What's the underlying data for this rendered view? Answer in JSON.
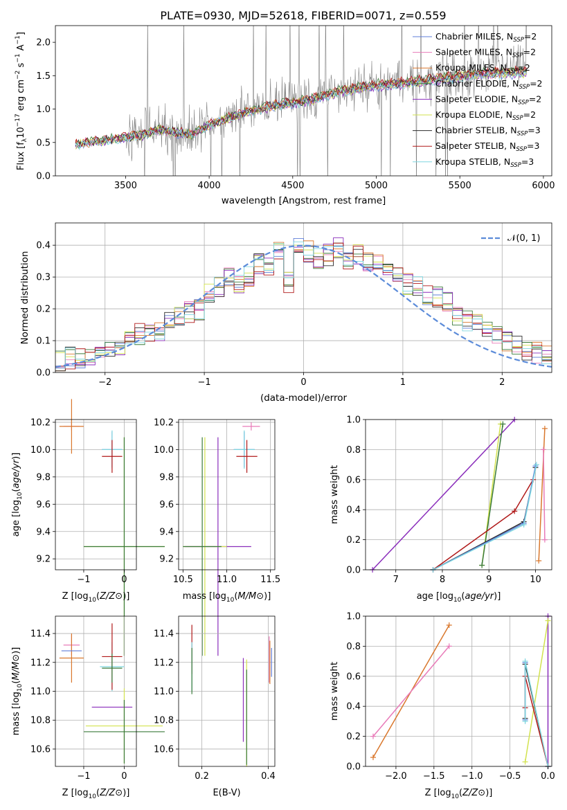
{
  "figure_title": "PLATE=0930, MJD=52618, FIBERID=0071, z=0.559",
  "chart_data": [
    {
      "id": "spectrum",
      "type": "line",
      "xlabel": "wavelength [Angstrom, rest frame]",
      "ylabel": "Flux [f_λ 10^-17 erg cm^-2 s^-1 A^-1]",
      "xlim": [
        3080,
        6050
      ],
      "ylim": [
        0,
        2.25
      ],
      "xticks": [
        3500,
        4000,
        4500,
        5000,
        5500,
        6000
      ],
      "yticks": [
        0.0,
        0.5,
        1.0,
        1.5,
        2.0
      ],
      "yticklabels": [
        "0.0",
        "0.5",
        "1.0",
        "1.5",
        "2.0"
      ],
      "grid": false,
      "legend_position": "top-right",
      "legend": [
        {
          "model": "Chabrier MILES, N",
          "sub": "SSP",
          "tail": "=2",
          "color": "#5f7ed8"
        },
        {
          "model": "Salpeter MILES, N",
          "sub": "SSP",
          "tail": "=2",
          "color": "#e87ab8"
        },
        {
          "model": "Kroupa MILES, N",
          "sub": "SSP",
          "tail": "=2",
          "color": "#d9772c"
        },
        {
          "model": "Chabrier ELODIE, N",
          "sub": "SSP",
          "tail": "=2",
          "color": "#3a7a3a"
        },
        {
          "model": "Salpeter ELODIE, N",
          "sub": "SSP",
          "tail": "=2",
          "color": "#8a2dbb"
        },
        {
          "model": "Kroupa ELODIE, N",
          "sub": "SSP",
          "tail": "=2",
          "color": "#d2e24e"
        },
        {
          "model": "Chabrier STELIB, N",
          "sub": "SSP",
          "tail": "=3",
          "color": "#2b2b2b"
        },
        {
          "model": "Salpeter STELIB, N",
          "sub": "SSP",
          "tail": "=3",
          "color": "#b01818"
        },
        {
          "model": "Kroupa STELIB, N",
          "sub": "SSP",
          "tail": "=3",
          "color": "#7fd6df"
        }
      ],
      "data_color": "#808080",
      "data_note": "observed spectrum drawn in grey, model fits overlaid",
      "continuum_knots": [
        [
          3200,
          0.48
        ],
        [
          3400,
          0.55
        ],
        [
          3600,
          0.62
        ],
        [
          3700,
          0.7
        ],
        [
          3900,
          0.62
        ],
        [
          4000,
          0.78
        ],
        [
          4200,
          0.95
        ],
        [
          4400,
          1.08
        ],
        [
          4600,
          1.15
        ],
        [
          4800,
          1.3
        ],
        [
          5000,
          1.38
        ],
        [
          5200,
          1.42
        ],
        [
          5400,
          1.48
        ],
        [
          5600,
          1.55
        ],
        [
          5900,
          1.58
        ]
      ]
    },
    {
      "id": "residuals",
      "type": "line",
      "xlabel": "(data-model)/error",
      "ylabel": "Normed distribution",
      "xlim": [
        -2.5,
        2.5
      ],
      "ylim": [
        0,
        0.47
      ],
      "xticks": [
        -2,
        -1,
        0,
        1,
        2
      ],
      "xticklabels": [
        "−2",
        "−1",
        "0",
        "1",
        "2"
      ],
      "yticks": [
        0.0,
        0.1,
        0.2,
        0.3,
        0.4
      ],
      "yticklabels": [
        "0.0",
        "0.1",
        "0.2",
        "0.3",
        "0.4"
      ],
      "grid": true,
      "legend_position": "top-right",
      "gaussian_label": "𝒩(0, 1)",
      "gaussian_color": "#5b8bd9",
      "bin_edges_range": [
        -2.5,
        2.5
      ],
      "n_bins": 50,
      "base_hist": [
        0.035,
        0.045,
        0.04,
        0.05,
        0.07,
        0.075,
        0.085,
        0.1,
        0.12,
        0.12,
        0.13,
        0.16,
        0.17,
        0.19,
        0.2,
        0.25,
        0.27,
        0.3,
        0.28,
        0.3,
        0.34,
        0.33,
        0.38,
        0.28,
        0.4,
        0.38,
        0.36,
        0.37,
        0.39,
        0.36,
        0.37,
        0.35,
        0.36,
        0.31,
        0.32,
        0.28,
        0.27,
        0.24,
        0.24,
        0.22,
        0.18,
        0.16,
        0.15,
        0.13,
        0.12,
        0.1,
        0.085,
        0.07,
        0.06,
        0.05
      ]
    },
    {
      "id": "age_vs_Z",
      "type": "scatter",
      "xlabel": "Z [log10(Z/Z⊙)]",
      "ylabel": "age [log10(age/yr)]",
      "xlim": [
        -1.7,
        0.3
      ],
      "ylim": [
        9.12,
        10.22
      ],
      "xticks": [
        -1,
        0
      ],
      "xticklabels": [
        "−1",
        "0"
      ],
      "yticks": [
        9.2,
        9.4,
        9.6,
        9.8,
        10.0,
        10.2
      ],
      "yticklabels": [
        "9.2",
        "9.4",
        "9.6",
        "9.8",
        "10.0",
        "10.2"
      ],
      "grid": true,
      "points": [
        {
          "x": -1.3,
          "y": 10.17,
          "xerr": 0.2,
          "yerr": 0.03,
          "color": "#e87ab8"
        },
        {
          "x": -1.3,
          "y": 10.17,
          "xerr": 0.3,
          "yerr": 0.2,
          "color": "#d9772c"
        },
        {
          "x": -0.3,
          "y": 10.0,
          "xerr": 0.25,
          "yerr": 0.13,
          "color": "#5f7ed8"
        },
        {
          "x": -0.3,
          "y": 10.0,
          "xerr": 0.25,
          "yerr": 0.14,
          "color": "#7fd6df"
        },
        {
          "x": -0.3,
          "y": 9.95,
          "xerr": 0.25,
          "yerr": 0.12,
          "color": "#b01818"
        },
        {
          "x": 0.0,
          "y": 9.29,
          "xerr": 1.0,
          "yerr": 0.8,
          "color": "#d2e24e"
        },
        {
          "x": 0.0,
          "y": 9.29,
          "xerr": 1.0,
          "yerr": 0.8,
          "color": "#3a7a3a"
        }
      ]
    },
    {
      "id": "age_vs_mass",
      "type": "scatter",
      "xlabel": "mass [log10(M/M⊙)]",
      "ylabel": "",
      "xlim": [
        10.45,
        11.55
      ],
      "ylim": [
        9.12,
        10.22
      ],
      "xticks": [
        10.5,
        11.0,
        11.5
      ],
      "xticklabels": [
        "10.5",
        "11.0",
        "11.5"
      ],
      "yticks": [
        9.2,
        9.4,
        9.6,
        9.8,
        10.0,
        10.2
      ],
      "yticklabels": [
        "9.2",
        "9.4",
        "9.6",
        "9.8",
        "10.0",
        "10.2"
      ],
      "grid": true,
      "points": [
        {
          "x": 11.28,
          "y": 10.17,
          "xerr": 0.1,
          "yerr": 0.03,
          "color": "#e87ab8"
        },
        {
          "x": 11.2,
          "y": 10.0,
          "xerr": 0.12,
          "yerr": 0.13,
          "color": "#5f7ed8"
        },
        {
          "x": 11.2,
          "y": 10.0,
          "xerr": 0.12,
          "yerr": 0.14,
          "color": "#7fd6df"
        },
        {
          "x": 11.23,
          "y": 9.95,
          "xerr": 0.12,
          "yerr": 0.12,
          "color": "#b01818"
        },
        {
          "x": 10.9,
          "y": 9.29,
          "xerr": 0.38,
          "yerr": 0.8,
          "color": "#8a2dbb"
        },
        {
          "x": 10.75,
          "y": 9.29,
          "xerr": 0.25,
          "yerr": 0.8,
          "color": "#d2e24e"
        },
        {
          "x": 10.72,
          "y": 9.29,
          "xerr": 0.22,
          "yerr": 0.8,
          "color": "#3a7a3a"
        }
      ]
    },
    {
      "id": "weight_vs_age",
      "type": "line",
      "xlabel": "age [log10(age/yr)]",
      "ylabel": "mass weight",
      "xlim": [
        6.35,
        10.35
      ],
      "ylim": [
        0,
        1
      ],
      "xticks": [
        7,
        8,
        9,
        10
      ],
      "xticklabels": [
        "7",
        "8",
        "9",
        "10"
      ],
      "yticks": [
        0.0,
        0.2,
        0.4,
        0.6,
        0.8,
        1.0
      ],
      "yticklabels": [
        "0.0",
        "0.2",
        "0.4",
        "0.6",
        "0.8",
        "1.0"
      ],
      "grid": true,
      "series": [
        {
          "color": "#8a2dbb",
          "x": [
            6.5,
            9.55
          ],
          "y": [
            0.0,
            1.0
          ]
        },
        {
          "color": "#d2e24e",
          "x": [
            8.85,
            9.25
          ],
          "y": [
            0.03,
            0.97
          ]
        },
        {
          "color": "#3a7a3a",
          "x": [
            8.85,
            9.3
          ],
          "y": [
            0.03,
            0.97
          ]
        },
        {
          "color": "#d9772c",
          "x": [
            10.07,
            10.2
          ],
          "y": [
            0.06,
            0.94
          ]
        },
        {
          "color": "#e87ab8",
          "x": [
            10.2,
            10.17
          ],
          "y": [
            0.2,
            0.8
          ]
        },
        {
          "color": "#2b2b2b",
          "x": [
            7.8,
            9.75,
            10.0
          ],
          "y": [
            0.0,
            0.32,
            0.68
          ]
        },
        {
          "color": "#b01818",
          "x": [
            7.8,
            9.55,
            9.95
          ],
          "y": [
            0.0,
            0.39,
            0.6
          ]
        },
        {
          "color": "#5f7ed8",
          "x": [
            7.8,
            9.75,
            10.0
          ],
          "y": [
            0.0,
            0.31,
            0.69
          ]
        },
        {
          "color": "#7fd6df",
          "x": [
            7.8,
            9.75,
            10.02
          ],
          "y": [
            0.0,
            0.3,
            0.7
          ]
        }
      ]
    },
    {
      "id": "mass_vs_Z",
      "type": "scatter",
      "xlabel": "Z [log10(Z/Z⊙)]",
      "ylabel": "mass [log10(M/M⊙)]",
      "xlim": [
        -1.7,
        0.3
      ],
      "ylim": [
        10.48,
        11.52
      ],
      "xticks": [
        -1,
        0
      ],
      "xticklabels": [
        "−1",
        "0"
      ],
      "yticks": [
        10.6,
        10.8,
        11.0,
        11.2,
        11.4
      ],
      "yticklabels": [
        "10.6",
        "10.8",
        "11.0",
        "11.2",
        "11.4"
      ],
      "grid": true,
      "points": [
        {
          "x": -1.3,
          "y": 11.32,
          "xerr": 0.2,
          "yerr": 0.07,
          "color": "#e87ab8"
        },
        {
          "x": -1.3,
          "y": 11.23,
          "xerr": 0.3,
          "yerr": 0.17,
          "color": "#d9772c"
        },
        {
          "x": -1.3,
          "y": 11.28,
          "xerr": 0.25,
          "yerr": 0.0,
          "color": "#5f7ed8"
        },
        {
          "x": -0.3,
          "y": 11.17,
          "xerr": 0.3,
          "yerr": 0.17,
          "color": "#7fd6df"
        },
        {
          "x": -0.3,
          "y": 11.24,
          "xerr": 0.25,
          "yerr": 0.23,
          "color": "#b01818"
        },
        {
          "x": -0.3,
          "y": 11.16,
          "xerr": 0.25,
          "yerr": 0.1,
          "color": "#3a7a3a"
        },
        {
          "x": -0.3,
          "y": 10.89,
          "xerr": 0.5,
          "yerr": 0.0,
          "color": "#8a2dbb"
        },
        {
          "x": 0.0,
          "y": 10.76,
          "xerr": 0.95,
          "yerr": 0.26,
          "color": "#d2e24e"
        },
        {
          "x": 0.0,
          "y": 10.72,
          "xerr": 1.0,
          "yerr": 0.22,
          "color": "#3a7a3a"
        }
      ]
    },
    {
      "id": "mass_vs_ebv",
      "type": "scatter",
      "xlabel": "E(B-V)",
      "ylabel": "",
      "xlim": [
        0.13,
        0.42
      ],
      "ylim": [
        10.48,
        11.52
      ],
      "xticks": [
        0.2,
        0.4
      ],
      "xticklabels": [
        "0.2",
        "0.4"
      ],
      "yticks": [
        10.6,
        10.8,
        11.0,
        11.2,
        11.4
      ],
      "yticklabels": [
        "10.6",
        "10.8",
        "11.0",
        "11.2",
        "11.4"
      ],
      "grid": true,
      "points": [
        {
          "x": 0.17,
          "y": 11.29,
          "xerr": 0.0,
          "yerr": 0.17,
          "color": "#b01818"
        },
        {
          "x": 0.17,
          "y": 11.17,
          "xerr": 0.0,
          "yerr": 0.17,
          "color": "#7fd6df"
        },
        {
          "x": 0.17,
          "y": 11.14,
          "xerr": 0.0,
          "yerr": 0.16,
          "color": "#3a7a3a"
        },
        {
          "x": 0.325,
          "y": 10.94,
          "xerr": 0.0,
          "yerr": 0.29,
          "color": "#8a2dbb"
        },
        {
          "x": 0.335,
          "y": 10.85,
          "xerr": 0.0,
          "yerr": 0.37,
          "color": "#d2e24e"
        },
        {
          "x": 0.335,
          "y": 10.82,
          "xerr": 0.0,
          "yerr": 0.33,
          "color": "#3a7a3a"
        },
        {
          "x": 0.403,
          "y": 11.22,
          "xerr": 0.0,
          "yerr": 0.16,
          "color": "#e87ab8"
        },
        {
          "x": 0.405,
          "y": 11.2,
          "xerr": 0.0,
          "yerr": 0.15,
          "color": "#d9772c"
        },
        {
          "x": 0.41,
          "y": 11.2,
          "xerr": 0.0,
          "yerr": 0.1,
          "color": "#5f7ed8"
        }
      ]
    },
    {
      "id": "weight_vs_Z",
      "type": "line",
      "xlabel": "Z [log10(Z/Z⊙)]",
      "ylabel": "mass weight",
      "xlim": [
        -2.4,
        0.05
      ],
      "ylim": [
        0,
        1
      ],
      "xticks": [
        -2.0,
        -1.5,
        -1.0,
        -0.5,
        0.0
      ],
      "xticklabels": [
        "−2.0",
        "−1.5",
        "−1.0",
        "−0.5",
        "0.0"
      ],
      "yticks": [
        0.0,
        0.2,
        0.4,
        0.6,
        0.8,
        1.0
      ],
      "yticklabels": [
        "0.0",
        "0.2",
        "0.4",
        "0.6",
        "0.8",
        "1.0"
      ],
      "grid": true,
      "series": [
        {
          "color": "#d9772c",
          "x": [
            -2.3,
            -1.3
          ],
          "y": [
            0.06,
            0.94
          ]
        },
        {
          "color": "#e87ab8",
          "x": [
            -2.3,
            -1.3
          ],
          "y": [
            0.2,
            0.8
          ]
        },
        {
          "color": "#8a2dbb",
          "x": [
            0.0,
            0.0
          ],
          "y": [
            0.0,
            1.0
          ]
        },
        {
          "color": "#d2e24e",
          "x": [
            -0.3,
            0.0
          ],
          "y": [
            0.03,
            0.97
          ]
        },
        {
          "color": "#2b2b2b",
          "x": [
            -0.3,
            -0.3,
            0.0
          ],
          "y": [
            0.32,
            0.68,
            0.0
          ]
        },
        {
          "color": "#b01818",
          "x": [
            -0.3,
            -0.3,
            0.0
          ],
          "y": [
            0.39,
            0.6,
            0.0
          ]
        },
        {
          "color": "#5f7ed8",
          "x": [
            -0.3,
            -0.3
          ],
          "y": [
            0.31,
            0.69
          ]
        },
        {
          "color": "#7fd6df",
          "x": [
            -0.3,
            -0.3,
            0.0
          ],
          "y": [
            0.3,
            0.7,
            0.0
          ]
        }
      ]
    }
  ]
}
